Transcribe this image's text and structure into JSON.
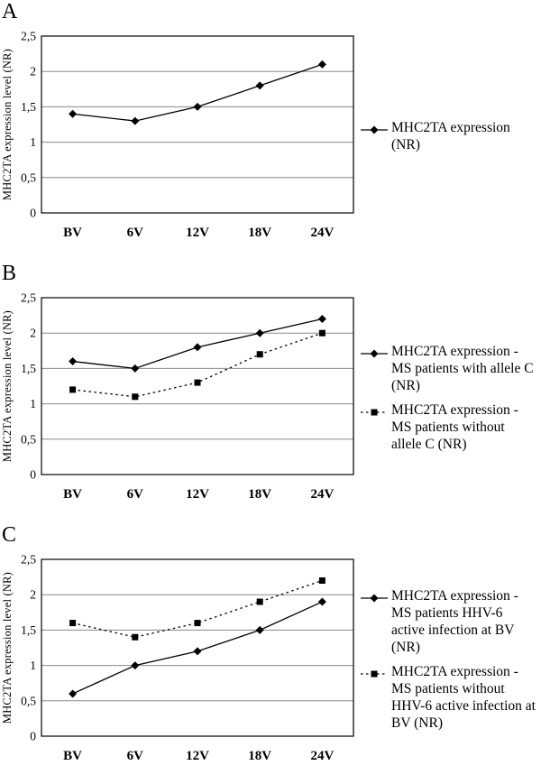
{
  "figure_background": "#ffffff",
  "line_color": "#000000",
  "grid_color": "#8a8a8a",
  "chart_data": [
    {
      "type": "line",
      "panel_label": "A",
      "ylabel": "MHC2TA expression level (NR)",
      "xlabel": "",
      "categories": [
        "BV",
        "6V",
        "12V",
        "18V",
        "24V"
      ],
      "ytick_labels": [
        "0",
        "0,5",
        "1",
        "1,5",
        "2",
        "2,5"
      ],
      "ylim": [
        0,
        2.5
      ],
      "grid": true,
      "legend_position": "right",
      "series": [
        {
          "name": "MHC2TA expression (NR)",
          "marker": "diamond",
          "line_style": "solid",
          "color": "#000000",
          "values": [
            1.4,
            1.3,
            1.5,
            1.8,
            2.1
          ]
        }
      ]
    },
    {
      "type": "line",
      "panel_label": "B",
      "ylabel": "MHC2TA expression level (NR)",
      "xlabel": "",
      "categories": [
        "BV",
        "6V",
        "12V",
        "18V",
        "24V"
      ],
      "ytick_labels": [
        "0",
        "0,5",
        "1",
        "1,5",
        "2",
        "2,5"
      ],
      "ylim": [
        0,
        2.5
      ],
      "grid": true,
      "legend_position": "right",
      "series": [
        {
          "name": "MHC2TA expression - MS patients with allele C (NR)",
          "marker": "diamond",
          "line_style": "solid",
          "color": "#000000",
          "values": [
            1.6,
            1.5,
            1.8,
            2.0,
            2.2
          ]
        },
        {
          "name": "MHC2TA expression - MS patients without allele C (NR)",
          "marker": "square",
          "line_style": "dotted",
          "color": "#000000",
          "values": [
            1.2,
            1.1,
            1.3,
            1.7,
            2.0
          ]
        }
      ]
    },
    {
      "type": "line",
      "panel_label": "C",
      "ylabel": "MHC2TA expression level (NR)",
      "xlabel": "",
      "categories": [
        "BV",
        "6V",
        "12V",
        "18V",
        "24V"
      ],
      "ytick_labels": [
        "0",
        "0,5",
        "1",
        "1,5",
        "2",
        "2,5"
      ],
      "ylim": [
        0,
        2.5
      ],
      "grid": true,
      "legend_position": "right",
      "series": [
        {
          "name": "MHC2TA expression - MS patients HHV-6 active infection at BV (NR)",
          "marker": "diamond",
          "line_style": "solid",
          "color": "#000000",
          "values": [
            0.6,
            1.0,
            1.2,
            1.5,
            1.9
          ]
        },
        {
          "name": "MHC2TA expression - MS patients without HHV-6 active infection at BV (NR)",
          "marker": "square",
          "line_style": "dotted",
          "color": "#000000",
          "values": [
            1.6,
            1.4,
            1.6,
            1.9,
            2.2
          ]
        }
      ]
    }
  ]
}
